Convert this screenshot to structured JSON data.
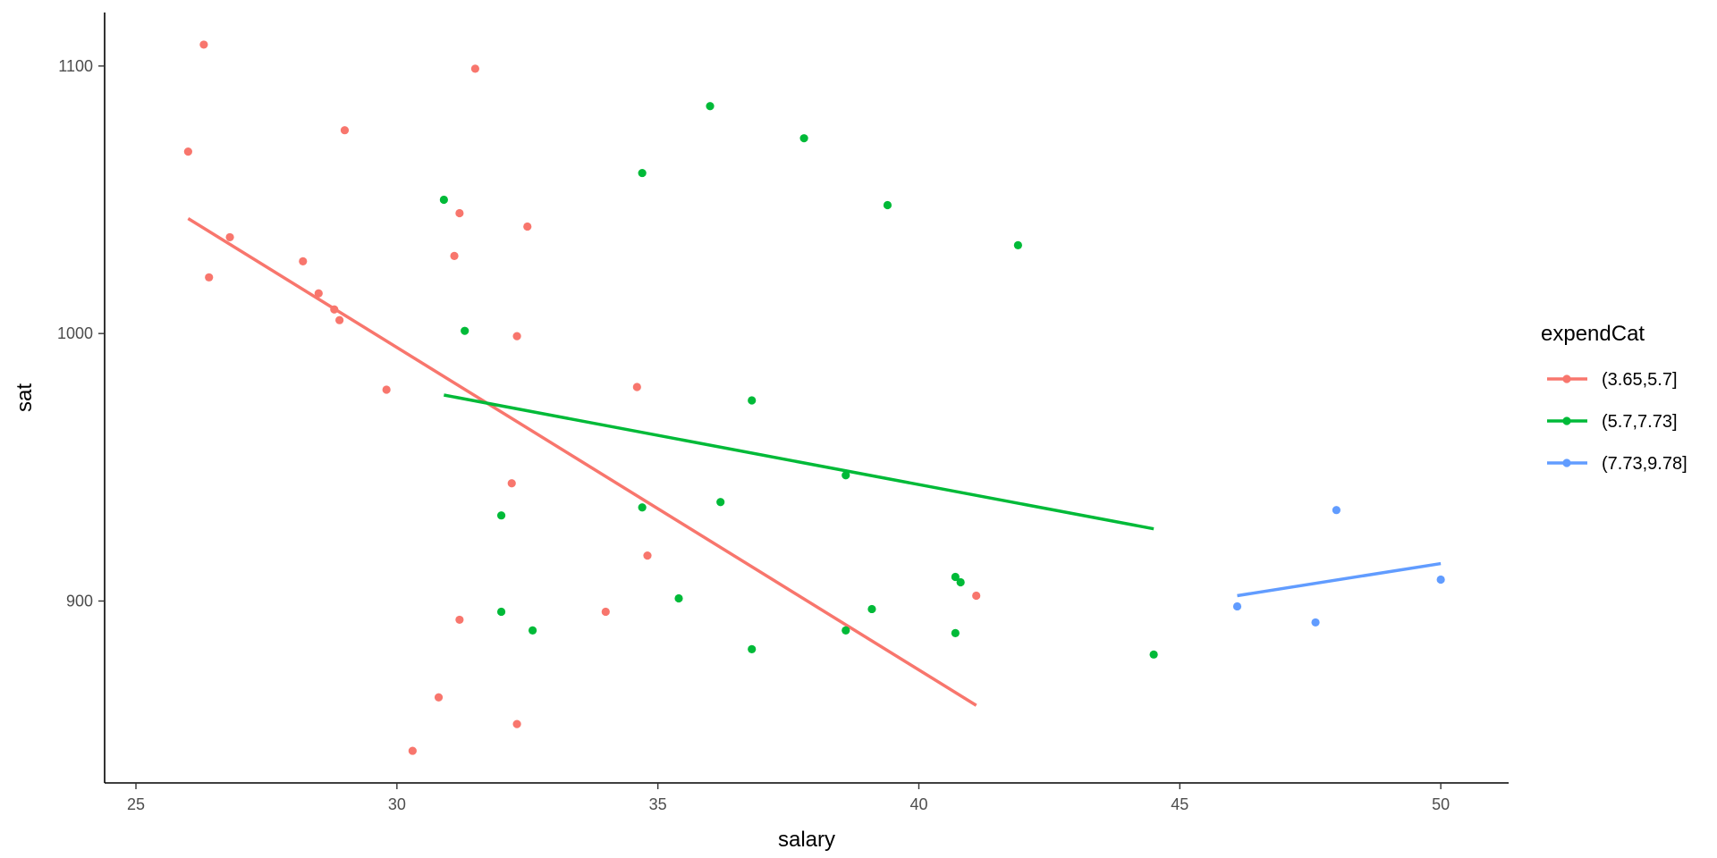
{
  "chart_data": {
    "type": "scatter",
    "xlabel": "salary",
    "ylabel": "sat",
    "xlim": [
      24.4,
      51.3
    ],
    "ylim": [
      832,
      1120
    ],
    "x_ticks": [
      25,
      30,
      35,
      40,
      45,
      50
    ],
    "y_ticks": [
      900,
      1000,
      1100
    ],
    "x_tick_labels": [
      "25",
      "30",
      "35",
      "40",
      "45",
      "50"
    ],
    "y_tick_labels": [
      "900",
      "1000",
      "1100"
    ],
    "grid": false,
    "legend": {
      "title": "expendCat",
      "position": "right"
    },
    "series": [
      {
        "name": "(3.65,5.7]",
        "color": "#F8766D",
        "points": [
          [
            26.0,
            1068
          ],
          [
            26.3,
            1108
          ],
          [
            26.4,
            1021
          ],
          [
            26.8,
            1036
          ],
          [
            28.2,
            1027
          ],
          [
            28.5,
            1015
          ],
          [
            28.8,
            1009
          ],
          [
            28.9,
            1005
          ],
          [
            29.0,
            1076
          ],
          [
            29.8,
            979
          ],
          [
            30.3,
            844
          ],
          [
            30.8,
            864
          ],
          [
            31.1,
            1029
          ],
          [
            31.2,
            1045
          ],
          [
            31.2,
            893
          ],
          [
            31.5,
            1099
          ],
          [
            32.2,
            944
          ],
          [
            32.3,
            999
          ],
          [
            32.3,
            854
          ],
          [
            32.5,
            1040
          ],
          [
            34.0,
            896
          ],
          [
            34.6,
            980
          ],
          [
            34.8,
            917
          ],
          [
            41.1,
            902
          ]
        ],
        "trend": [
          [
            26.0,
            1043
          ],
          [
            41.1,
            861
          ]
        ]
      },
      {
        "name": "(5.7,7.73]",
        "color": "#00BA38",
        "points": [
          [
            30.9,
            1050
          ],
          [
            31.3,
            1001
          ],
          [
            32.0,
            932
          ],
          [
            32.0,
            896
          ],
          [
            32.6,
            889
          ],
          [
            34.7,
            1060
          ],
          [
            34.7,
            935
          ],
          [
            35.4,
            901
          ],
          [
            36.0,
            1085
          ],
          [
            36.2,
            937
          ],
          [
            36.8,
            975
          ],
          [
            36.8,
            882
          ],
          [
            37.8,
            1073
          ],
          [
            38.6,
            947
          ],
          [
            38.6,
            889
          ],
          [
            39.1,
            897
          ],
          [
            39.4,
            1048
          ],
          [
            40.7,
            909
          ],
          [
            40.7,
            888
          ],
          [
            40.8,
            907
          ],
          [
            41.9,
            1033
          ],
          [
            44.5,
            880
          ]
        ],
        "trend": [
          [
            30.9,
            977
          ],
          [
            44.5,
            927
          ]
        ]
      },
      {
        "name": "(7.73,9.78]",
        "color": "#619CFF",
        "points": [
          [
            46.1,
            898
          ],
          [
            47.6,
            892
          ],
          [
            48.0,
            934
          ],
          [
            50.0,
            908
          ]
        ],
        "trend": [
          [
            46.1,
            902
          ],
          [
            50.0,
            914
          ]
        ]
      }
    ]
  }
}
